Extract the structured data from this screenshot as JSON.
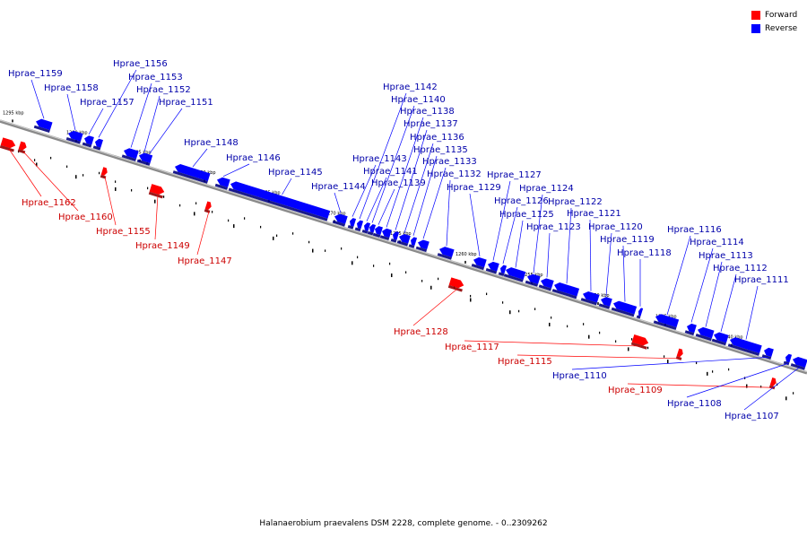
{
  "colors": {
    "forward": "#ff0000",
    "reverse": "#0000ff",
    "backbone": "#777777"
  },
  "legend": [
    {
      "key": "forward",
      "label": "Forward"
    },
    {
      "key": "reverse",
      "label": "Reverse"
    }
  ],
  "caption": "Halanaerobium praevalens DSM 2228, complete genome. - 0..2309262",
  "scale_labels": [
    "1295 kbp",
    "1290 kbp",
    "1285 kbp",
    "1280 kbp",
    "1275 kbp",
    "1270 kbp",
    "1265 kbp",
    "1260 kbp",
    "1255 kbp",
    "1250 kbp",
    "1245 kbp",
    "1240 kbp"
  ],
  "genes": [
    {
      "id": "Hprae_1162",
      "strand": "forward"
    },
    {
      "id": "Hprae_1160",
      "strand": "forward"
    },
    {
      "id": "Hprae_1159",
      "strand": "reverse"
    },
    {
      "id": "Hprae_1158",
      "strand": "reverse"
    },
    {
      "id": "Hprae_1157",
      "strand": "reverse"
    },
    {
      "id": "Hprae_1156",
      "strand": "reverse"
    },
    {
      "id": "Hprae_1155",
      "strand": "forward"
    },
    {
      "id": "Hprae_1153",
      "strand": "reverse"
    },
    {
      "id": "Hprae_1152",
      "strand": "reverse"
    },
    {
      "id": "Hprae_1151",
      "strand": "reverse"
    },
    {
      "id": "Hprae_1149",
      "strand": "forward"
    },
    {
      "id": "Hprae_1148",
      "strand": "reverse"
    },
    {
      "id": "Hprae_1147",
      "strand": "forward"
    },
    {
      "id": "Hprae_1146",
      "strand": "reverse"
    },
    {
      "id": "Hprae_1145",
      "strand": "reverse"
    },
    {
      "id": "Hprae_1144",
      "strand": "reverse"
    },
    {
      "id": "Hprae_1143",
      "strand": "reverse"
    },
    {
      "id": "Hprae_1142",
      "strand": "reverse"
    },
    {
      "id": "Hprae_1141",
      "strand": "reverse"
    },
    {
      "id": "Hprae_1140",
      "strand": "reverse"
    },
    {
      "id": "Hprae_1139",
      "strand": "reverse"
    },
    {
      "id": "Hprae_1138",
      "strand": "reverse"
    },
    {
      "id": "Hprae_1137",
      "strand": "reverse"
    },
    {
      "id": "Hprae_1136",
      "strand": "reverse"
    },
    {
      "id": "Hprae_1135",
      "strand": "reverse"
    },
    {
      "id": "Hprae_1133",
      "strand": "reverse"
    },
    {
      "id": "Hprae_1132",
      "strand": "reverse"
    },
    {
      "id": "Hprae_1129",
      "strand": "reverse"
    },
    {
      "id": "Hprae_1128",
      "strand": "forward"
    },
    {
      "id": "Hprae_1127",
      "strand": "reverse"
    },
    {
      "id": "Hprae_1126",
      "strand": "reverse"
    },
    {
      "id": "Hprae_1125",
      "strand": "reverse"
    },
    {
      "id": "Hprae_1124",
      "strand": "reverse"
    },
    {
      "id": "Hprae_1123",
      "strand": "reverse"
    },
    {
      "id": "Hprae_1122",
      "strand": "reverse"
    },
    {
      "id": "Hprae_1121",
      "strand": "reverse"
    },
    {
      "id": "Hprae_1120",
      "strand": "reverse"
    },
    {
      "id": "Hprae_1119",
      "strand": "reverse"
    },
    {
      "id": "Hprae_1118",
      "strand": "reverse"
    },
    {
      "id": "Hprae_1117",
      "strand": "forward"
    },
    {
      "id": "Hprae_1116",
      "strand": "reverse"
    },
    {
      "id": "Hprae_1115",
      "strand": "forward"
    },
    {
      "id": "Hprae_1114",
      "strand": "reverse"
    },
    {
      "id": "Hprae_1113",
      "strand": "reverse"
    },
    {
      "id": "Hprae_1112",
      "strand": "reverse"
    },
    {
      "id": "Hprae_1111",
      "strand": "reverse"
    },
    {
      "id": "Hprae_1110",
      "strand": "reverse"
    },
    {
      "id": "Hprae_1109",
      "strand": "forward"
    },
    {
      "id": "Hprae_1108",
      "strand": "reverse"
    },
    {
      "id": "Hprae_1107",
      "strand": "reverse"
    }
  ]
}
